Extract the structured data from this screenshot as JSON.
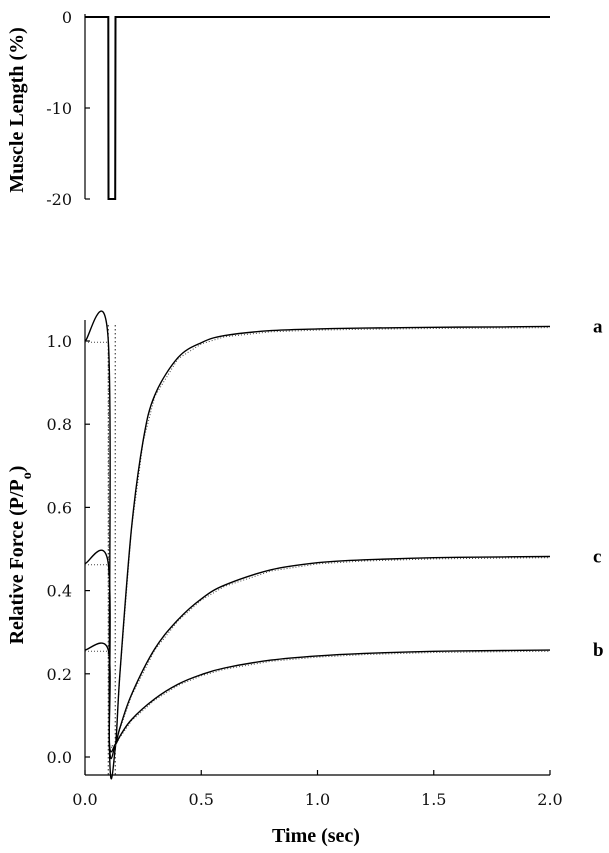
{
  "chart_data": [
    {
      "type": "line",
      "ylabel": "Muscle Length (%)",
      "xlim": [
        0.0,
        2.0
      ],
      "ylim": [
        -20,
        0
      ],
      "y_ticks": [
        "0",
        "-10",
        "-20"
      ],
      "y_tick_values": [
        0,
        -10,
        -20
      ],
      "series": [
        {
          "x": [
            0.0,
            0.1,
            0.101,
            0.11,
            0.12,
            0.13,
            0.131,
            0.135,
            2.0
          ],
          "y": [
            0,
            0,
            -20,
            -20,
            -20,
            -20,
            0,
            0,
            0
          ]
        }
      ]
    },
    {
      "type": "line",
      "xlabel": "Time (sec)",
      "ylabel_main": "Relative Force (P/P",
      "ylabel_sub": "o",
      "ylabel_close": ")",
      "xlim": [
        0.0,
        2.0
      ],
      "ylim": [
        -0.05,
        1.05
      ],
      "x_ticks": [
        "0.0",
        "0.5",
        "1.0",
        "1.5",
        "2.0"
      ],
      "x_tick_values": [
        0.0,
        0.5,
        1.0,
        1.5,
        2.0
      ],
      "y_ticks": [
        "0.0",
        "0.2",
        "0.4",
        "0.6",
        "0.8",
        "1.0"
      ],
      "y_tick_values": [
        0.0,
        0.2,
        0.4,
        0.6,
        0.8,
        1.0
      ],
      "markers": [
        {
          "x": 0.1,
          "style": "dotted"
        },
        {
          "x": 0.13,
          "style": "dotted"
        }
      ],
      "series": [
        {
          "name": "a",
          "x": [
            0.0,
            0.1,
            0.105,
            0.13,
            0.15,
            0.2,
            0.25,
            0.3,
            0.4,
            0.5,
            0.6,
            0.8,
            1.0,
            1.2,
            1.5,
            1.8,
            2.0
          ],
          "y": [
            1.0,
            1.0,
            0.03,
            0.02,
            0.2,
            0.55,
            0.76,
            0.87,
            0.96,
            0.996,
            1.013,
            1.025,
            1.029,
            1.031,
            1.033,
            1.034,
            1.035
          ]
        },
        {
          "name": "c",
          "x": [
            0.0,
            0.1,
            0.105,
            0.13,
            0.15,
            0.2,
            0.3,
            0.4,
            0.5,
            0.6,
            0.8,
            1.0,
            1.2,
            1.5,
            1.8,
            2.0
          ],
          "y": [
            0.465,
            0.465,
            0.03,
            0.03,
            0.07,
            0.15,
            0.26,
            0.33,
            0.38,
            0.413,
            0.45,
            0.467,
            0.474,
            0.479,
            0.481,
            0.482
          ]
        },
        {
          "name": "b",
          "x": [
            0.0,
            0.1,
            0.105,
            0.13,
            0.15,
            0.2,
            0.3,
            0.4,
            0.5,
            0.6,
            0.8,
            1.0,
            1.2,
            1.5,
            1.8,
            2.0
          ],
          "y": [
            0.257,
            0.257,
            0.03,
            0.03,
            0.05,
            0.09,
            0.14,
            0.175,
            0.198,
            0.214,
            0.233,
            0.243,
            0.249,
            0.254,
            0.256,
            0.257
          ]
        }
      ]
    }
  ]
}
